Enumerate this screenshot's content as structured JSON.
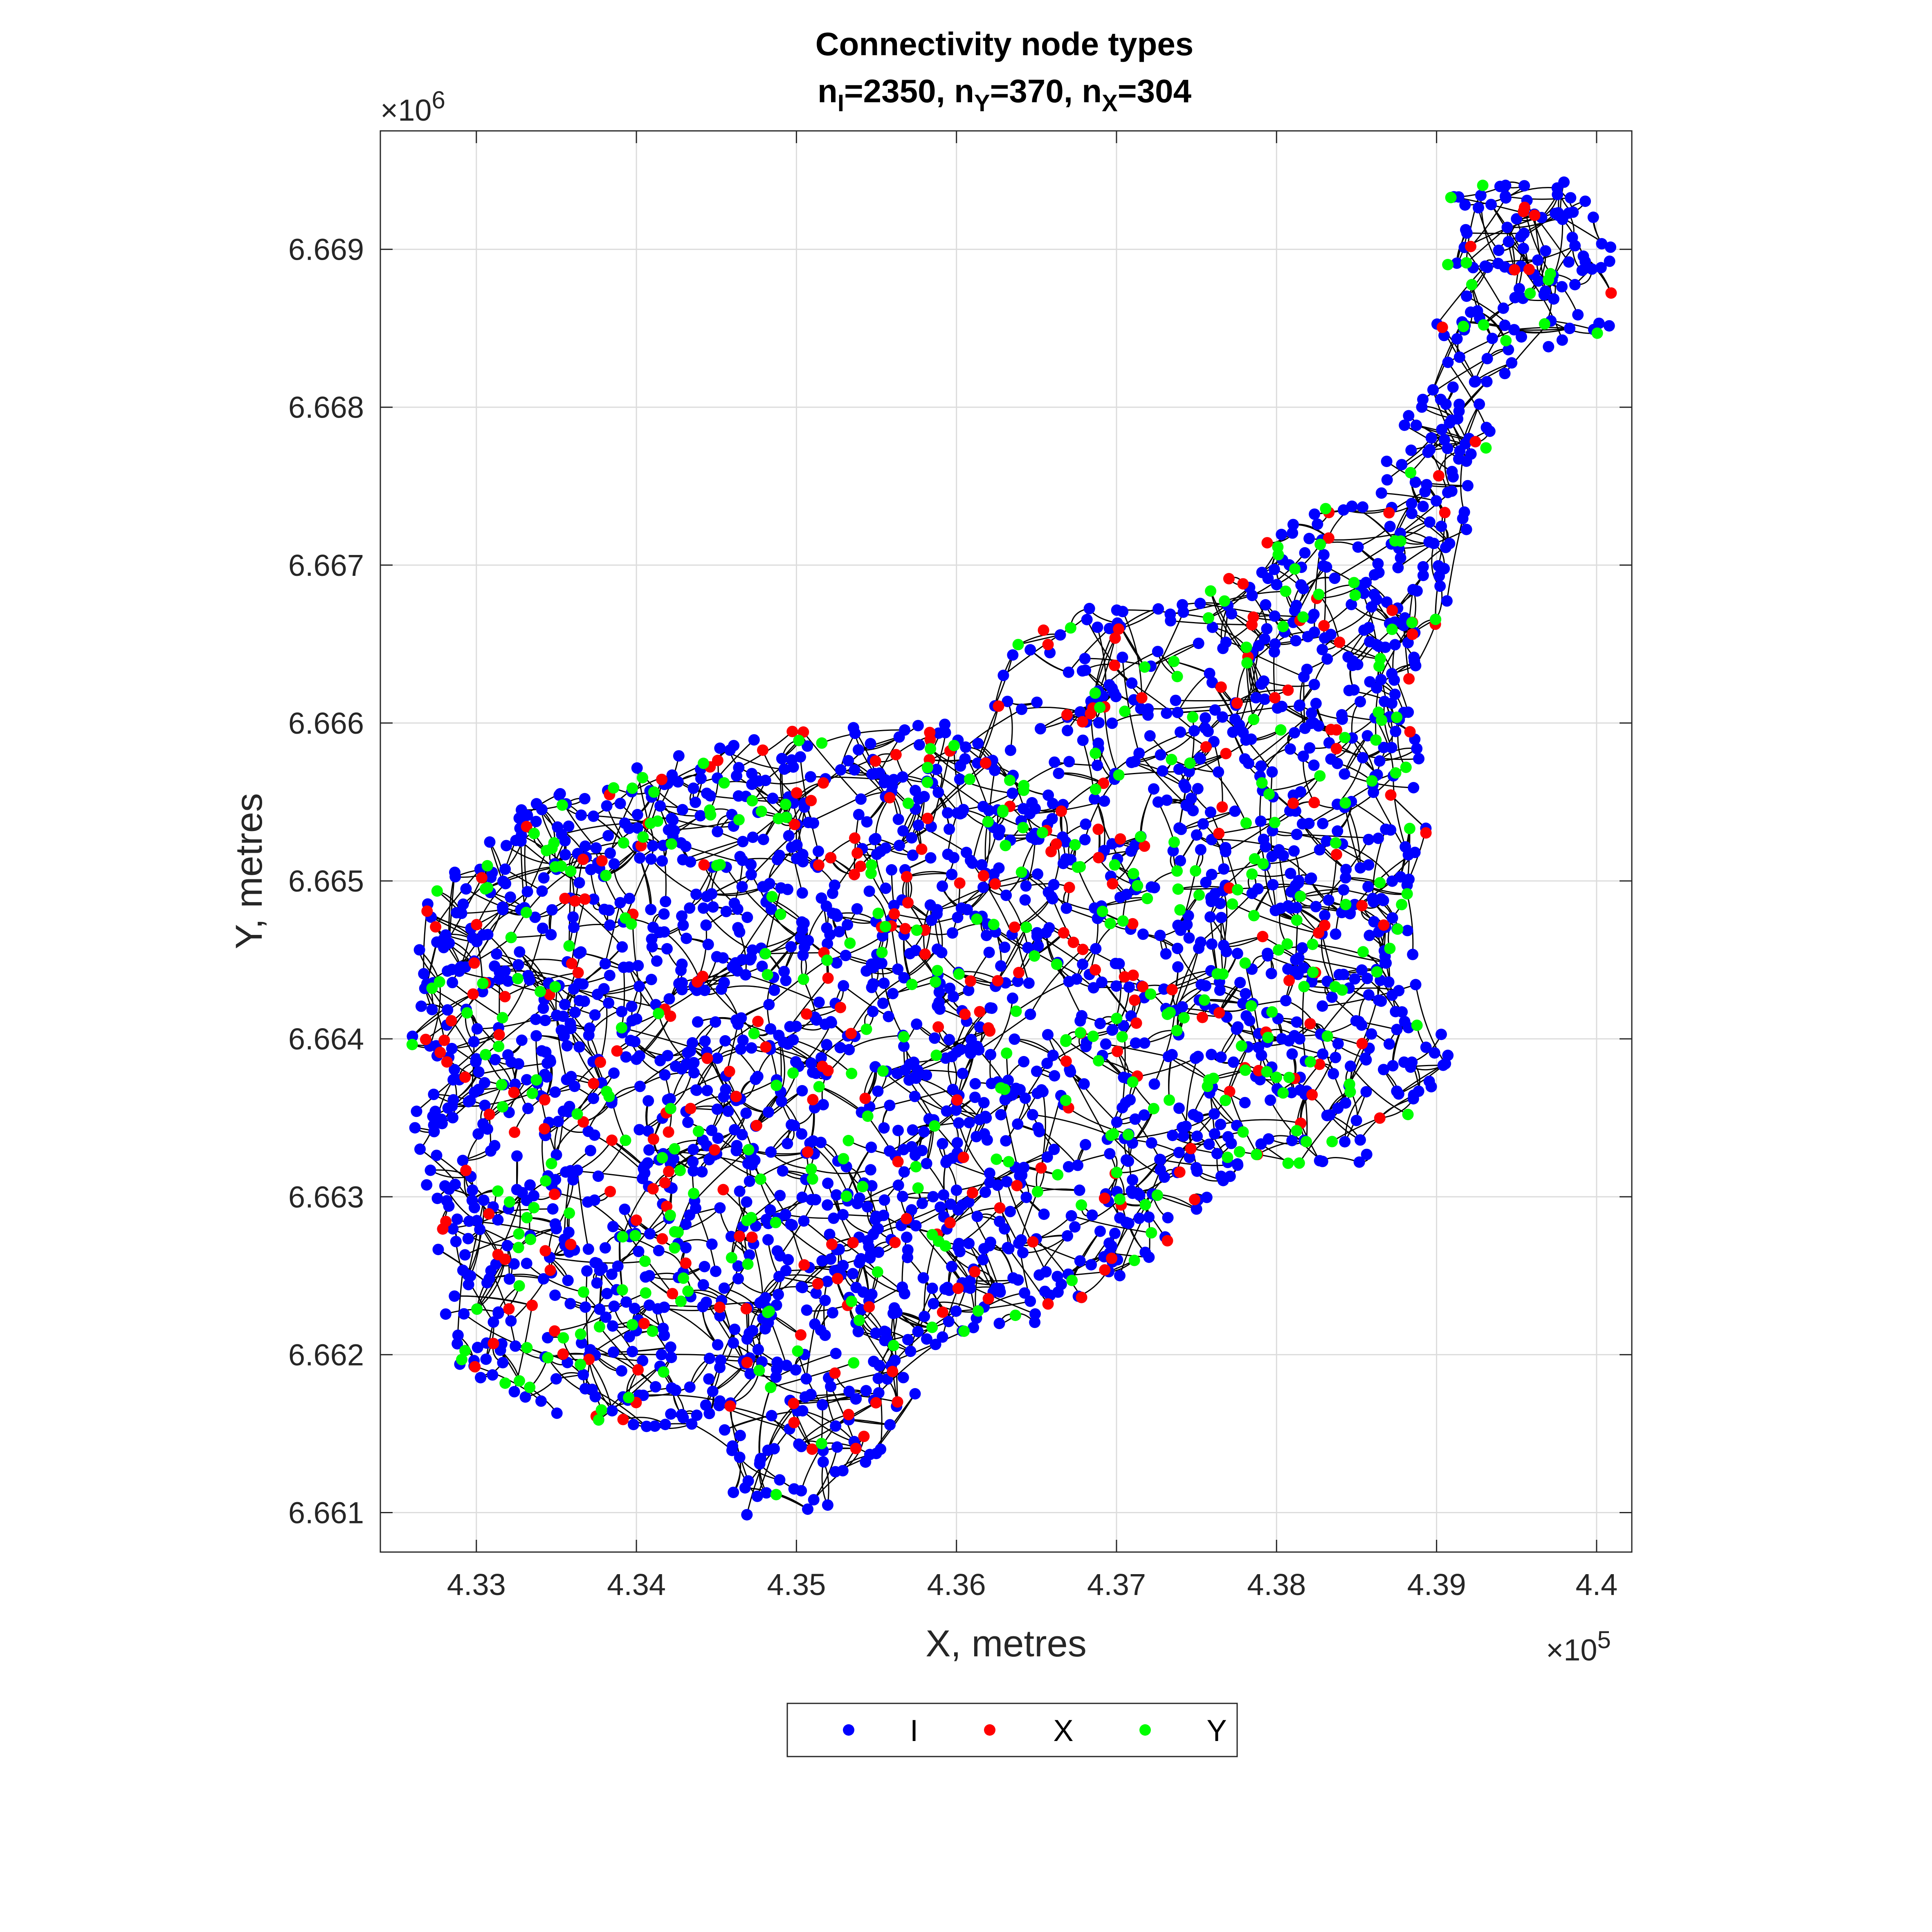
{
  "chart_data": {
    "type": "scatter",
    "title": "Connectivity node types",
    "subtitle": {
      "parts": [
        {
          "text": "n",
          "sub": "I",
          "text2": "=2350, "
        },
        {
          "text": "n",
          "sub": "Y",
          "text2": "=370, "
        },
        {
          "text": "n",
          "sub": "X",
          "text2": "=304"
        }
      ]
    },
    "xlabel": "X, metres",
    "ylabel": "Y, metres",
    "x_exponent": {
      "base": "×10",
      "exp": "5"
    },
    "y_exponent": {
      "base": "×10",
      "exp": "6"
    },
    "xlim": [
      432400,
      440220
    ],
    "ylim": [
      6660750,
      6669750
    ],
    "x_ticks": [
      433000,
      434000,
      435000,
      436000,
      437000,
      438000,
      439000,
      440000
    ],
    "x_tick_labels": [
      "4.33",
      "4.34",
      "4.35",
      "4.36",
      "4.37",
      "4.38",
      "4.39",
      "4.4"
    ],
    "y_ticks": [
      6661000,
      6662000,
      6663000,
      6664000,
      6665000,
      6666000,
      6667000,
      6668000,
      6669000
    ],
    "y_tick_labels": [
      "6.661",
      "6.662",
      "6.663",
      "6.664",
      "6.665",
      "6.666",
      "6.667",
      "6.668",
      "6.669"
    ],
    "grid": true,
    "legend_position": "bottom-outside",
    "colors": {
      "I": "#0000ff",
      "X": "#ff0000",
      "Y": "#00ff00",
      "edges": "#000000"
    },
    "series": [
      {
        "name": "I",
        "count": 2350,
        "color": "#0000ff"
      },
      {
        "name": "X",
        "count": 304,
        "color": "#ff0000"
      },
      {
        "name": "Y",
        "count": 370,
        "color": "#00ff00"
      }
    ],
    "region_outline": [
      [
        432550,
        6664000
      ],
      [
        432700,
        6664900
      ],
      [
        433300,
        6665500
      ],
      [
        434200,
        6665800
      ],
      [
        435200,
        6666000
      ],
      [
        436100,
        6666000
      ],
      [
        436500,
        6666700
      ],
      [
        437500,
        6666800
      ],
      [
        438100,
        6667300
      ],
      [
        438600,
        6667500
      ],
      [
        439000,
        6668300
      ],
      [
        439000,
        6669300
      ],
      [
        439500,
        6669500
      ],
      [
        440100,
        6669400
      ],
      [
        440100,
        6668500
      ],
      [
        439400,
        6668200
      ],
      [
        439200,
        6667000
      ],
      [
        438800,
        6666200
      ],
      [
        439000,
        6665300
      ],
      [
        438800,
        6664800
      ],
      [
        439100,
        6663800
      ],
      [
        438600,
        6663200
      ],
      [
        437700,
        6663100
      ],
      [
        437200,
        6662600
      ],
      [
        436500,
        6662200
      ],
      [
        435900,
        6662100
      ],
      [
        435700,
        6661600
      ],
      [
        435200,
        6661000
      ],
      [
        434700,
        6660950
      ],
      [
        434400,
        6661500
      ],
      [
        433500,
        6661600
      ],
      [
        432900,
        6661900
      ],
      [
        432700,
        6662600
      ],
      [
        432600,
        6663300
      ]
    ]
  }
}
